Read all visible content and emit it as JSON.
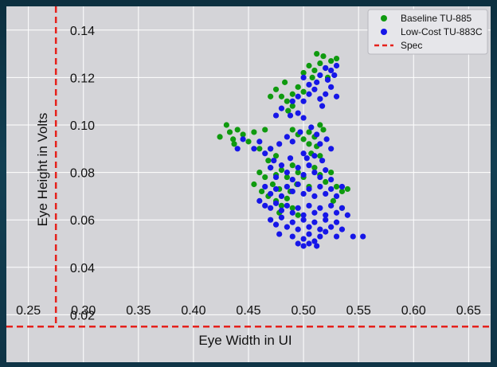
{
  "chart_data": {
    "type": "scatter",
    "title": "",
    "xlabel": "Eye Width in UI",
    "ylabel": "Eye Height in Volts",
    "xlim": [
      0.23,
      0.67
    ],
    "ylim": [
      0.0,
      0.15
    ],
    "x_ticks": [
      "0.25",
      "0.30",
      "0.35",
      "0.40",
      "0.45",
      "0.50",
      "0.55",
      "0.60",
      "0.65"
    ],
    "y_ticks": [
      "0.02",
      "0.04",
      "0.06",
      "0.08",
      "0.10",
      "0.12",
      "0.14"
    ],
    "grid": true,
    "legend_position": "top-right",
    "spec": {
      "name": "Spec",
      "x": 0.275,
      "y": 0.015,
      "color": "#e5211c"
    },
    "series": [
      {
        "name": "Baseline TU-885",
        "color": "#0f9a0f",
        "points": [
          [
            0.424,
            0.095
          ],
          [
            0.43,
            0.1
          ],
          [
            0.433,
            0.097
          ],
          [
            0.436,
            0.094
          ],
          [
            0.44,
            0.098
          ],
          [
            0.437,
            0.092
          ],
          [
            0.445,
            0.096
          ],
          [
            0.45,
            0.093
          ],
          [
            0.455,
            0.097
          ],
          [
            0.46,
            0.09
          ],
          [
            0.465,
            0.098
          ],
          [
            0.47,
            0.09
          ],
          [
            0.475,
            0.087
          ],
          [
            0.468,
            0.085
          ],
          [
            0.47,
            0.112
          ],
          [
            0.475,
            0.115
          ],
          [
            0.48,
            0.112
          ],
          [
            0.485,
            0.11
          ],
          [
            0.49,
            0.113
          ],
          [
            0.495,
            0.116
          ],
          [
            0.5,
            0.114
          ],
          [
            0.486,
            0.106
          ],
          [
            0.49,
            0.108
          ],
          [
            0.483,
            0.118
          ],
          [
            0.49,
            0.098
          ],
          [
            0.495,
            0.096
          ],
          [
            0.5,
            0.094
          ],
          [
            0.505,
            0.097
          ],
          [
            0.51,
            0.095
          ],
          [
            0.515,
            0.1
          ],
          [
            0.505,
            0.092
          ],
          [
            0.512,
            0.091
          ],
          [
            0.518,
            0.098
          ],
          [
            0.5,
            0.122
          ],
          [
            0.505,
            0.125
          ],
          [
            0.51,
            0.123
          ],
          [
            0.515,
            0.126
          ],
          [
            0.52,
            0.124
          ],
          [
            0.525,
            0.127
          ],
          [
            0.53,
            0.128
          ],
          [
            0.512,
            0.13
          ],
          [
            0.518,
            0.129
          ],
          [
            0.508,
            0.12
          ],
          [
            0.522,
            0.12
          ],
          [
            0.46,
            0.08
          ],
          [
            0.465,
            0.078
          ],
          [
            0.47,
            0.082
          ],
          [
            0.475,
            0.079
          ],
          [
            0.48,
            0.081
          ],
          [
            0.485,
            0.078
          ],
          [
            0.49,
            0.083
          ],
          [
            0.495,
            0.08
          ],
          [
            0.472,
            0.075
          ],
          [
            0.478,
            0.073
          ],
          [
            0.488,
            0.072
          ],
          [
            0.494,
            0.075
          ],
          [
            0.5,
            0.078
          ],
          [
            0.505,
            0.074
          ],
          [
            0.468,
            0.07
          ],
          [
            0.475,
            0.068
          ],
          [
            0.48,
            0.066
          ],
          [
            0.485,
            0.069
          ],
          [
            0.49,
            0.065
          ],
          [
            0.51,
            0.082
          ],
          [
            0.515,
            0.079
          ],
          [
            0.52,
            0.076
          ],
          [
            0.525,
            0.08
          ],
          [
            0.53,
            0.074
          ],
          [
            0.535,
            0.072
          ],
          [
            0.54,
            0.073
          ],
          [
            0.527,
            0.068
          ],
          [
            0.535,
            0.065
          ],
          [
            0.455,
            0.075
          ],
          [
            0.462,
            0.072
          ],
          [
            0.478,
            0.063
          ],
          [
            0.495,
            0.062
          ],
          [
            0.507,
            0.088
          ],
          [
            0.515,
            0.087
          ]
        ]
      },
      {
        "name": "Low-Cost TU-883C",
        "color": "#1616e8",
        "points": [
          [
            0.44,
            0.09
          ],
          [
            0.445,
            0.094
          ],
          [
            0.455,
            0.09
          ],
          [
            0.46,
            0.093
          ],
          [
            0.465,
            0.088
          ],
          [
            0.47,
            0.09
          ],
          [
            0.478,
            0.092
          ],
          [
            0.485,
            0.095
          ],
          [
            0.49,
            0.093
          ],
          [
            0.475,
            0.104
          ],
          [
            0.48,
            0.107
          ],
          [
            0.488,
            0.104
          ],
          [
            0.495,
            0.105
          ],
          [
            0.5,
            0.103
          ],
          [
            0.49,
            0.11
          ],
          [
            0.495,
            0.112
          ],
          [
            0.5,
            0.11
          ],
          [
            0.505,
            0.113
          ],
          [
            0.51,
            0.115
          ],
          [
            0.515,
            0.111
          ],
          [
            0.52,
            0.113
          ],
          [
            0.525,
            0.116
          ],
          [
            0.53,
            0.112
          ],
          [
            0.512,
            0.118
          ],
          [
            0.522,
            0.119
          ],
          [
            0.528,
            0.121
          ],
          [
            0.517,
            0.108
          ],
          [
            0.5,
            0.12
          ],
          [
            0.505,
            0.117
          ],
          [
            0.515,
            0.121
          ],
          [
            0.52,
            0.124
          ],
          [
            0.525,
            0.123
          ],
          [
            0.53,
            0.125
          ],
          [
            0.47,
            0.082
          ],
          [
            0.475,
            0.078
          ],
          [
            0.48,
            0.083
          ],
          [
            0.485,
            0.08
          ],
          [
            0.49,
            0.077
          ],
          [
            0.495,
            0.082
          ],
          [
            0.5,
            0.079
          ],
          [
            0.505,
            0.083
          ],
          [
            0.51,
            0.08
          ],
          [
            0.515,
            0.078
          ],
          [
            0.52,
            0.081
          ],
          [
            0.525,
            0.077
          ],
          [
            0.503,
            0.086
          ],
          [
            0.51,
            0.087
          ],
          [
            0.517,
            0.085
          ],
          [
            0.465,
            0.074
          ],
          [
            0.47,
            0.071
          ],
          [
            0.475,
            0.073
          ],
          [
            0.48,
            0.07
          ],
          [
            0.485,
            0.074
          ],
          [
            0.49,
            0.072
          ],
          [
            0.495,
            0.075
          ],
          [
            0.5,
            0.071
          ],
          [
            0.505,
            0.073
          ],
          [
            0.51,
            0.07
          ],
          [
            0.515,
            0.074
          ],
          [
            0.52,
            0.071
          ],
          [
            0.525,
            0.073
          ],
          [
            0.53,
            0.07
          ],
          [
            0.535,
            0.074
          ],
          [
            0.46,
            0.068
          ],
          [
            0.465,
            0.066
          ],
          [
            0.47,
            0.065
          ],
          [
            0.475,
            0.067
          ],
          [
            0.48,
            0.064
          ],
          [
            0.485,
            0.066
          ],
          [
            0.49,
            0.063
          ],
          [
            0.495,
            0.065
          ],
          [
            0.5,
            0.062
          ],
          [
            0.505,
            0.066
          ],
          [
            0.51,
            0.063
          ],
          [
            0.515,
            0.065
          ],
          [
            0.52,
            0.062
          ],
          [
            0.525,
            0.066
          ],
          [
            0.53,
            0.063
          ],
          [
            0.535,
            0.065
          ],
          [
            0.54,
            0.062
          ],
          [
            0.47,
            0.06
          ],
          [
            0.475,
            0.058
          ],
          [
            0.48,
            0.061
          ],
          [
            0.485,
            0.057
          ],
          [
            0.49,
            0.059
          ],
          [
            0.495,
            0.056
          ],
          [
            0.5,
            0.06
          ],
          [
            0.505,
            0.057
          ],
          [
            0.51,
            0.059
          ],
          [
            0.515,
            0.056
          ],
          [
            0.52,
            0.06
          ],
          [
            0.525,
            0.057
          ],
          [
            0.53,
            0.059
          ],
          [
            0.535,
            0.056
          ],
          [
            0.478,
            0.054
          ],
          [
            0.49,
            0.053
          ],
          [
            0.5,
            0.052
          ],
          [
            0.505,
            0.054
          ],
          [
            0.51,
            0.051
          ],
          [
            0.515,
            0.053
          ],
          [
            0.52,
            0.055
          ],
          [
            0.53,
            0.053
          ],
          [
            0.545,
            0.053
          ],
          [
            0.554,
            0.053
          ],
          [
            0.495,
            0.05
          ],
          [
            0.5,
            0.049
          ],
          [
            0.505,
            0.05
          ],
          [
            0.512,
            0.049
          ],
          [
            0.473,
            0.085
          ],
          [
            0.488,
            0.086
          ],
          [
            0.5,
            0.088
          ],
          [
            0.497,
            0.097
          ],
          [
            0.507,
            0.099
          ],
          [
            0.512,
            0.096
          ],
          [
            0.521,
            0.094
          ],
          [
            0.525,
            0.09
          ],
          [
            0.515,
            0.092
          ]
        ]
      }
    ]
  }
}
